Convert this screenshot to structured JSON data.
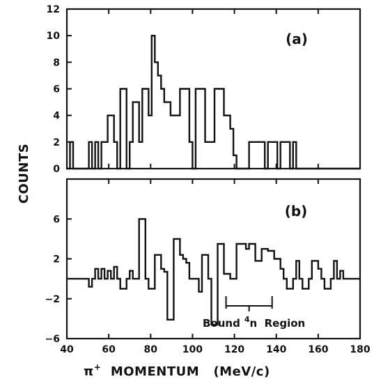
{
  "chart_data": [
    {
      "type": "histogram",
      "panel_label": "(a)",
      "ylabel": "COUNTS",
      "xlabel": "π⁺ MOMENTUM   (MeV/c)",
      "xlim": [
        40,
        180
      ],
      "ylim": [
        0,
        12
      ],
      "yticks": [
        0,
        2,
        4,
        6,
        8,
        10,
        12
      ],
      "xticks": [
        40,
        60,
        80,
        100,
        120,
        140,
        160,
        180
      ],
      "bin_width": 1.5,
      "x_start": 40,
      "values": [
        0,
        2,
        0,
        0,
        0,
        0,
        0,
        2,
        0,
        2,
        0,
        2,
        2,
        4,
        4,
        2,
        0,
        6,
        6,
        0,
        2,
        5,
        5,
        2,
        6,
        6,
        4,
        10,
        8,
        7,
        6,
        5,
        5,
        4,
        4,
        4,
        6,
        6,
        6,
        2,
        0,
        6,
        6,
        6,
        2,
        2,
        2,
        6,
        6,
        6,
        4,
        4,
        3,
        1,
        0,
        0,
        0,
        0,
        2,
        2,
        2,
        2,
        2,
        0,
        2,
        2,
        2,
        0,
        2,
        2,
        2,
        0,
        2,
        0,
        0,
        0,
        0,
        0,
        0,
        0,
        0,
        0,
        0,
        0,
        0,
        0,
        0,
        0,
        0,
        0,
        0,
        0,
        0,
        0
      ]
    },
    {
      "type": "histogram",
      "panel_label": "(b)",
      "ylabel": "",
      "xlabel": "π⁺ MOMENTUM   (MeV/c)",
      "xlim": [
        40,
        180
      ],
      "ylim": [
        -6,
        10
      ],
      "yticks": [
        -6,
        -2,
        2,
        6
      ],
      "xticks": [
        40,
        60,
        80,
        100,
        120,
        140,
        160,
        180
      ],
      "bin_width": 1.5,
      "x_start": 40,
      "values": [
        0,
        0,
        0,
        0,
        0,
        0,
        0,
        -0.8,
        0,
        1,
        0,
        1,
        0,
        0.8,
        0,
        1.2,
        0,
        -1,
        -1,
        0,
        0.8,
        0,
        0,
        6,
        6,
        0,
        -1,
        -1,
        2.4,
        2.4,
        1,
        0.7,
        -4.1,
        -4.1,
        4,
        4,
        2.4,
        2,
        1.6,
        0,
        0,
        0,
        -1.3,
        2.4,
        2.4,
        0,
        -4.6,
        -4.6,
        3.5,
        3.5,
        0.5,
        0.5,
        0,
        0,
        3.5,
        3.5,
        3.5,
        3,
        3.5,
        3.5,
        1.8,
        1.8,
        3,
        3,
        2.8,
        2.8,
        2,
        2,
        1,
        0,
        -1,
        -1,
        0,
        1.8,
        0,
        -1,
        -1,
        0,
        1.8,
        1.8,
        1,
        0,
        -1,
        -1,
        0,
        1.8,
        0,
        0.8,
        0,
        0,
        0,
        0,
        0,
        0
      ],
      "annotation": {
        "text": "Bound ⁴n Region",
        "range": [
          116,
          138
        ]
      }
    }
  ],
  "labels": {
    "ylabel": "COUNTS",
    "xlabel_prefix": "π",
    "xlabel_sup": "+",
    "xlabel_rest": "  MOMENTUM   (MeV/c)",
    "panel_a": "(a)",
    "panel_b": "(b)",
    "bound_word": "Bound",
    "bound_sup": "4",
    "bound_rest": "n  Region"
  }
}
